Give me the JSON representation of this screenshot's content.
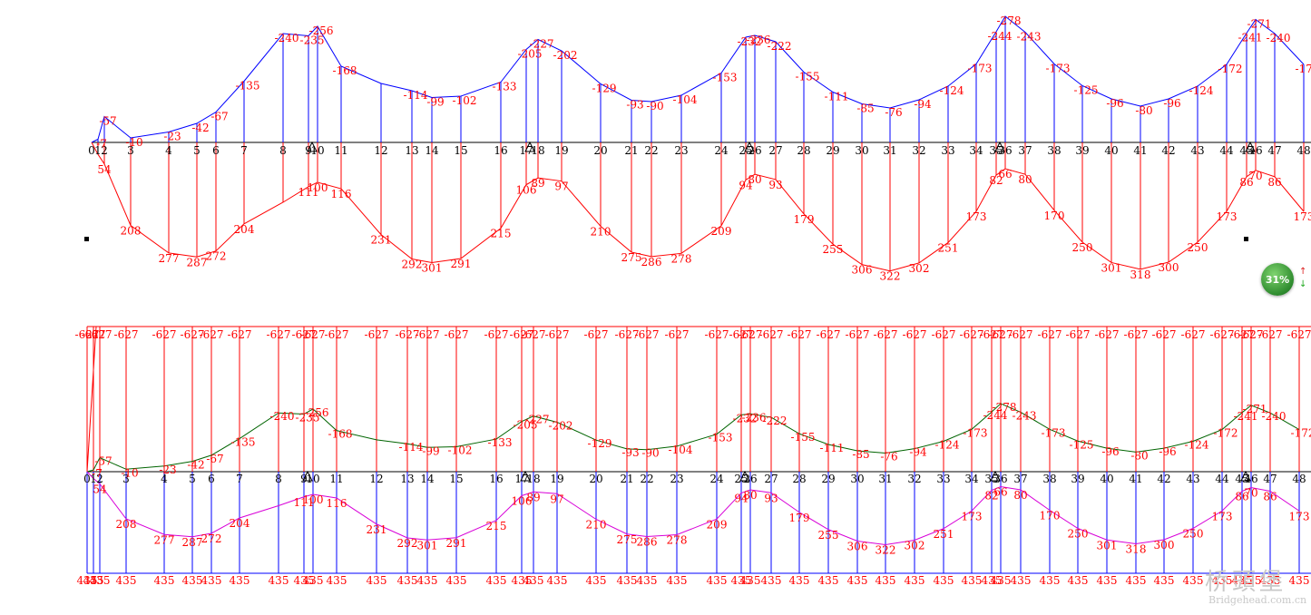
{
  "stations": [
    "0",
    "1",
    "2",
    "3",
    "4",
    "5",
    "6",
    "7",
    "8",
    "9",
    "10",
    "11",
    "12",
    "13",
    "14",
    "15",
    "16",
    "17",
    "18",
    "19",
    "20",
    "21",
    "22",
    "23",
    "24",
    "25",
    "26",
    "27",
    "28",
    "29",
    "30",
    "31",
    "32",
    "33",
    "34",
    "35",
    "36",
    "37",
    "38",
    "39",
    "40",
    "41",
    "42",
    "43",
    "44",
    "45",
    "46",
    "47",
    "48"
  ],
  "top_diagram": {
    "negative_labels": [
      {
        "i": 1,
        "t": "-7"
      },
      {
        "i": 2,
        "t": "-57"
      },
      {
        "i": 3,
        "t": "-10"
      },
      {
        "i": 4,
        "t": "-23"
      },
      {
        "i": 5,
        "t": "-42"
      },
      {
        "i": 6,
        "t": "-67"
      },
      {
        "i": 7,
        "t": "-135"
      },
      {
        "i": 8,
        "t": "-240"
      },
      {
        "i": 9,
        "t": "-235"
      },
      {
        "i": 10,
        "t": "-256"
      },
      {
        "i": 11,
        "t": "-168"
      },
      {
        "i": 13,
        "t": "-114"
      },
      {
        "i": 14,
        "t": "-99"
      },
      {
        "i": 15,
        "t": "-102"
      },
      {
        "i": 16,
        "t": "-133"
      },
      {
        "i": 17,
        "t": "-205"
      },
      {
        "i": 18,
        "t": "-227"
      },
      {
        "i": 19,
        "t": "-202"
      },
      {
        "i": 20,
        "t": "-129"
      },
      {
        "i": 21,
        "t": "-93"
      },
      {
        "i": 22,
        "t": "-90"
      },
      {
        "i": 23,
        "t": "-104"
      },
      {
        "i": 24,
        "t": "-153"
      },
      {
        "i": 25,
        "t": "-232"
      },
      {
        "i": 26,
        "t": "-236"
      },
      {
        "i": 27,
        "t": "-222"
      },
      {
        "i": 28,
        "t": "-155"
      },
      {
        "i": 29,
        "t": "-111"
      },
      {
        "i": 30,
        "t": "-85"
      },
      {
        "i": 31,
        "t": "-76"
      },
      {
        "i": 32,
        "t": "-94"
      },
      {
        "i": 33,
        "t": "-124"
      },
      {
        "i": 34,
        "t": "-173"
      },
      {
        "i": 35,
        "t": "-244"
      },
      {
        "i": 36,
        "t": "-278"
      },
      {
        "i": 37,
        "t": "-243"
      },
      {
        "i": 38,
        "t": "-173"
      },
      {
        "i": 39,
        "t": "-125"
      },
      {
        "i": 40,
        "t": "-96"
      },
      {
        "i": 41,
        "t": "-80"
      },
      {
        "i": 42,
        "t": "-96"
      },
      {
        "i": 43,
        "t": "-124"
      },
      {
        "i": 44,
        "t": "-172"
      },
      {
        "i": 45,
        "t": "-241"
      },
      {
        "i": 46,
        "t": "-271"
      },
      {
        "i": 47,
        "t": "-240"
      },
      {
        "i": 48,
        "t": "-172"
      }
    ],
    "positive_labels": [
      {
        "i": 2,
        "t": "54"
      },
      {
        "i": 3,
        "t": "208"
      },
      {
        "i": 4,
        "t": "277"
      },
      {
        "i": 5,
        "t": "287"
      },
      {
        "i": 6,
        "t": "272"
      },
      {
        "i": 7,
        "t": "204"
      },
      {
        "i": 9,
        "t": "111"
      },
      {
        "i": 10,
        "t": "100"
      },
      {
        "i": 11,
        "t": "116"
      },
      {
        "i": 12,
        "t": "231"
      },
      {
        "i": 13,
        "t": "292"
      },
      {
        "i": 14,
        "t": "301"
      },
      {
        "i": 15,
        "t": "291"
      },
      {
        "i": 16,
        "t": "215"
      },
      {
        "i": 17,
        "t": "106"
      },
      {
        "i": 18,
        "t": "89"
      },
      {
        "i": 19,
        "t": "97"
      },
      {
        "i": 20,
        "t": "210"
      },
      {
        "i": 21,
        "t": "275"
      },
      {
        "i": 22,
        "t": "286"
      },
      {
        "i": 23,
        "t": "278"
      },
      {
        "i": 24,
        "t": "209"
      },
      {
        "i": 25,
        "t": "94"
      },
      {
        "i": 26,
        "t": "80"
      },
      {
        "i": 27,
        "t": "93"
      },
      {
        "i": 28,
        "t": "179"
      },
      {
        "i": 29,
        "t": "255"
      },
      {
        "i": 30,
        "t": "306"
      },
      {
        "i": 31,
        "t": "322"
      },
      {
        "i": 32,
        "t": "302"
      },
      {
        "i": 33,
        "t": "251"
      },
      {
        "i": 34,
        "t": "173"
      },
      {
        "i": 35,
        "t": "82"
      },
      {
        "i": 36,
        "t": "66"
      },
      {
        "i": 37,
        "t": "80"
      },
      {
        "i": 38,
        "t": "170"
      },
      {
        "i": 39,
        "t": "250"
      },
      {
        "i": 40,
        "t": "301"
      },
      {
        "i": 41,
        "t": "318"
      },
      {
        "i": 42,
        "t": "300"
      },
      {
        "i": 43,
        "t": "250"
      },
      {
        "i": 44,
        "t": "173"
      },
      {
        "i": 45,
        "t": "86"
      },
      {
        "i": 46,
        "t": "70"
      },
      {
        "i": 47,
        "t": "86"
      },
      {
        "i": 48,
        "t": "173"
      }
    ]
  },
  "bottom_diagram": {
    "top_limit_label": "-627",
    "bottom_limit_label": "435"
  },
  "badge": {
    "percent": "31%",
    "up": "↑",
    "down": "↓"
  },
  "watermark": {
    "chinese": "桥頭堡",
    "english": "Bridgehead.com.cn"
  },
  "colors": {
    "red": "#ff0000",
    "blue": "#0000ff",
    "green": "#006400",
    "magenta": "#d800d8",
    "axis": "#000000"
  }
}
